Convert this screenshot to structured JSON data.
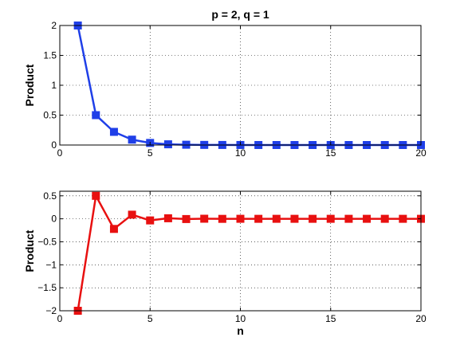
{
  "chart_data": [
    {
      "type": "line",
      "title": "p = 2, q = 1",
      "xlabel": "",
      "ylabel": "Product",
      "xlim": [
        0,
        20
      ],
      "ylim": [
        0,
        2
      ],
      "xticks": [
        "0",
        "5",
        "10",
        "15",
        "20"
      ],
      "yticks": [
        "0",
        "0.5",
        "1",
        "1.5",
        "2"
      ],
      "grid": "dotted",
      "marker": "square",
      "color": "#1f3fe8",
      "x": [
        1,
        2,
        3,
        4,
        5,
        6,
        7,
        8,
        9,
        10,
        11,
        12,
        13,
        14,
        15,
        16,
        17,
        18,
        19,
        20
      ],
      "series": [
        {
          "values": [
            2,
            0.5,
            0.22,
            0.09,
            0.035,
            0.012,
            0.005,
            0.002,
            0.001,
            0.0005,
            0.0002,
            0.0001,
            0,
            0,
            0,
            0,
            0,
            0,
            0,
            0
          ]
        }
      ]
    },
    {
      "type": "line",
      "title": "",
      "xlabel": "n",
      "ylabel": "Product",
      "xlim": [
        0,
        20
      ],
      "ylim": [
        -2,
        0.6
      ],
      "xticks": [
        "0",
        "5",
        "10",
        "15",
        "20"
      ],
      "yticks": [
        "-2",
        "-1.5",
        "-1",
        "-0.5",
        "0",
        "0.5"
      ],
      "grid": "dotted",
      "marker": "square",
      "color": "#e81010",
      "x": [
        1,
        2,
        3,
        4,
        5,
        6,
        7,
        8,
        9,
        10,
        11,
        12,
        13,
        14,
        15,
        16,
        17,
        18,
        19,
        20
      ],
      "series": [
        {
          "values": [
            -2,
            0.5,
            -0.22,
            0.09,
            -0.035,
            0.012,
            -0.005,
            0.002,
            -0.001,
            0.0005,
            -0.0002,
            0.0001,
            0,
            0,
            0,
            0,
            0,
            0,
            0,
            0
          ]
        }
      ]
    }
  ]
}
